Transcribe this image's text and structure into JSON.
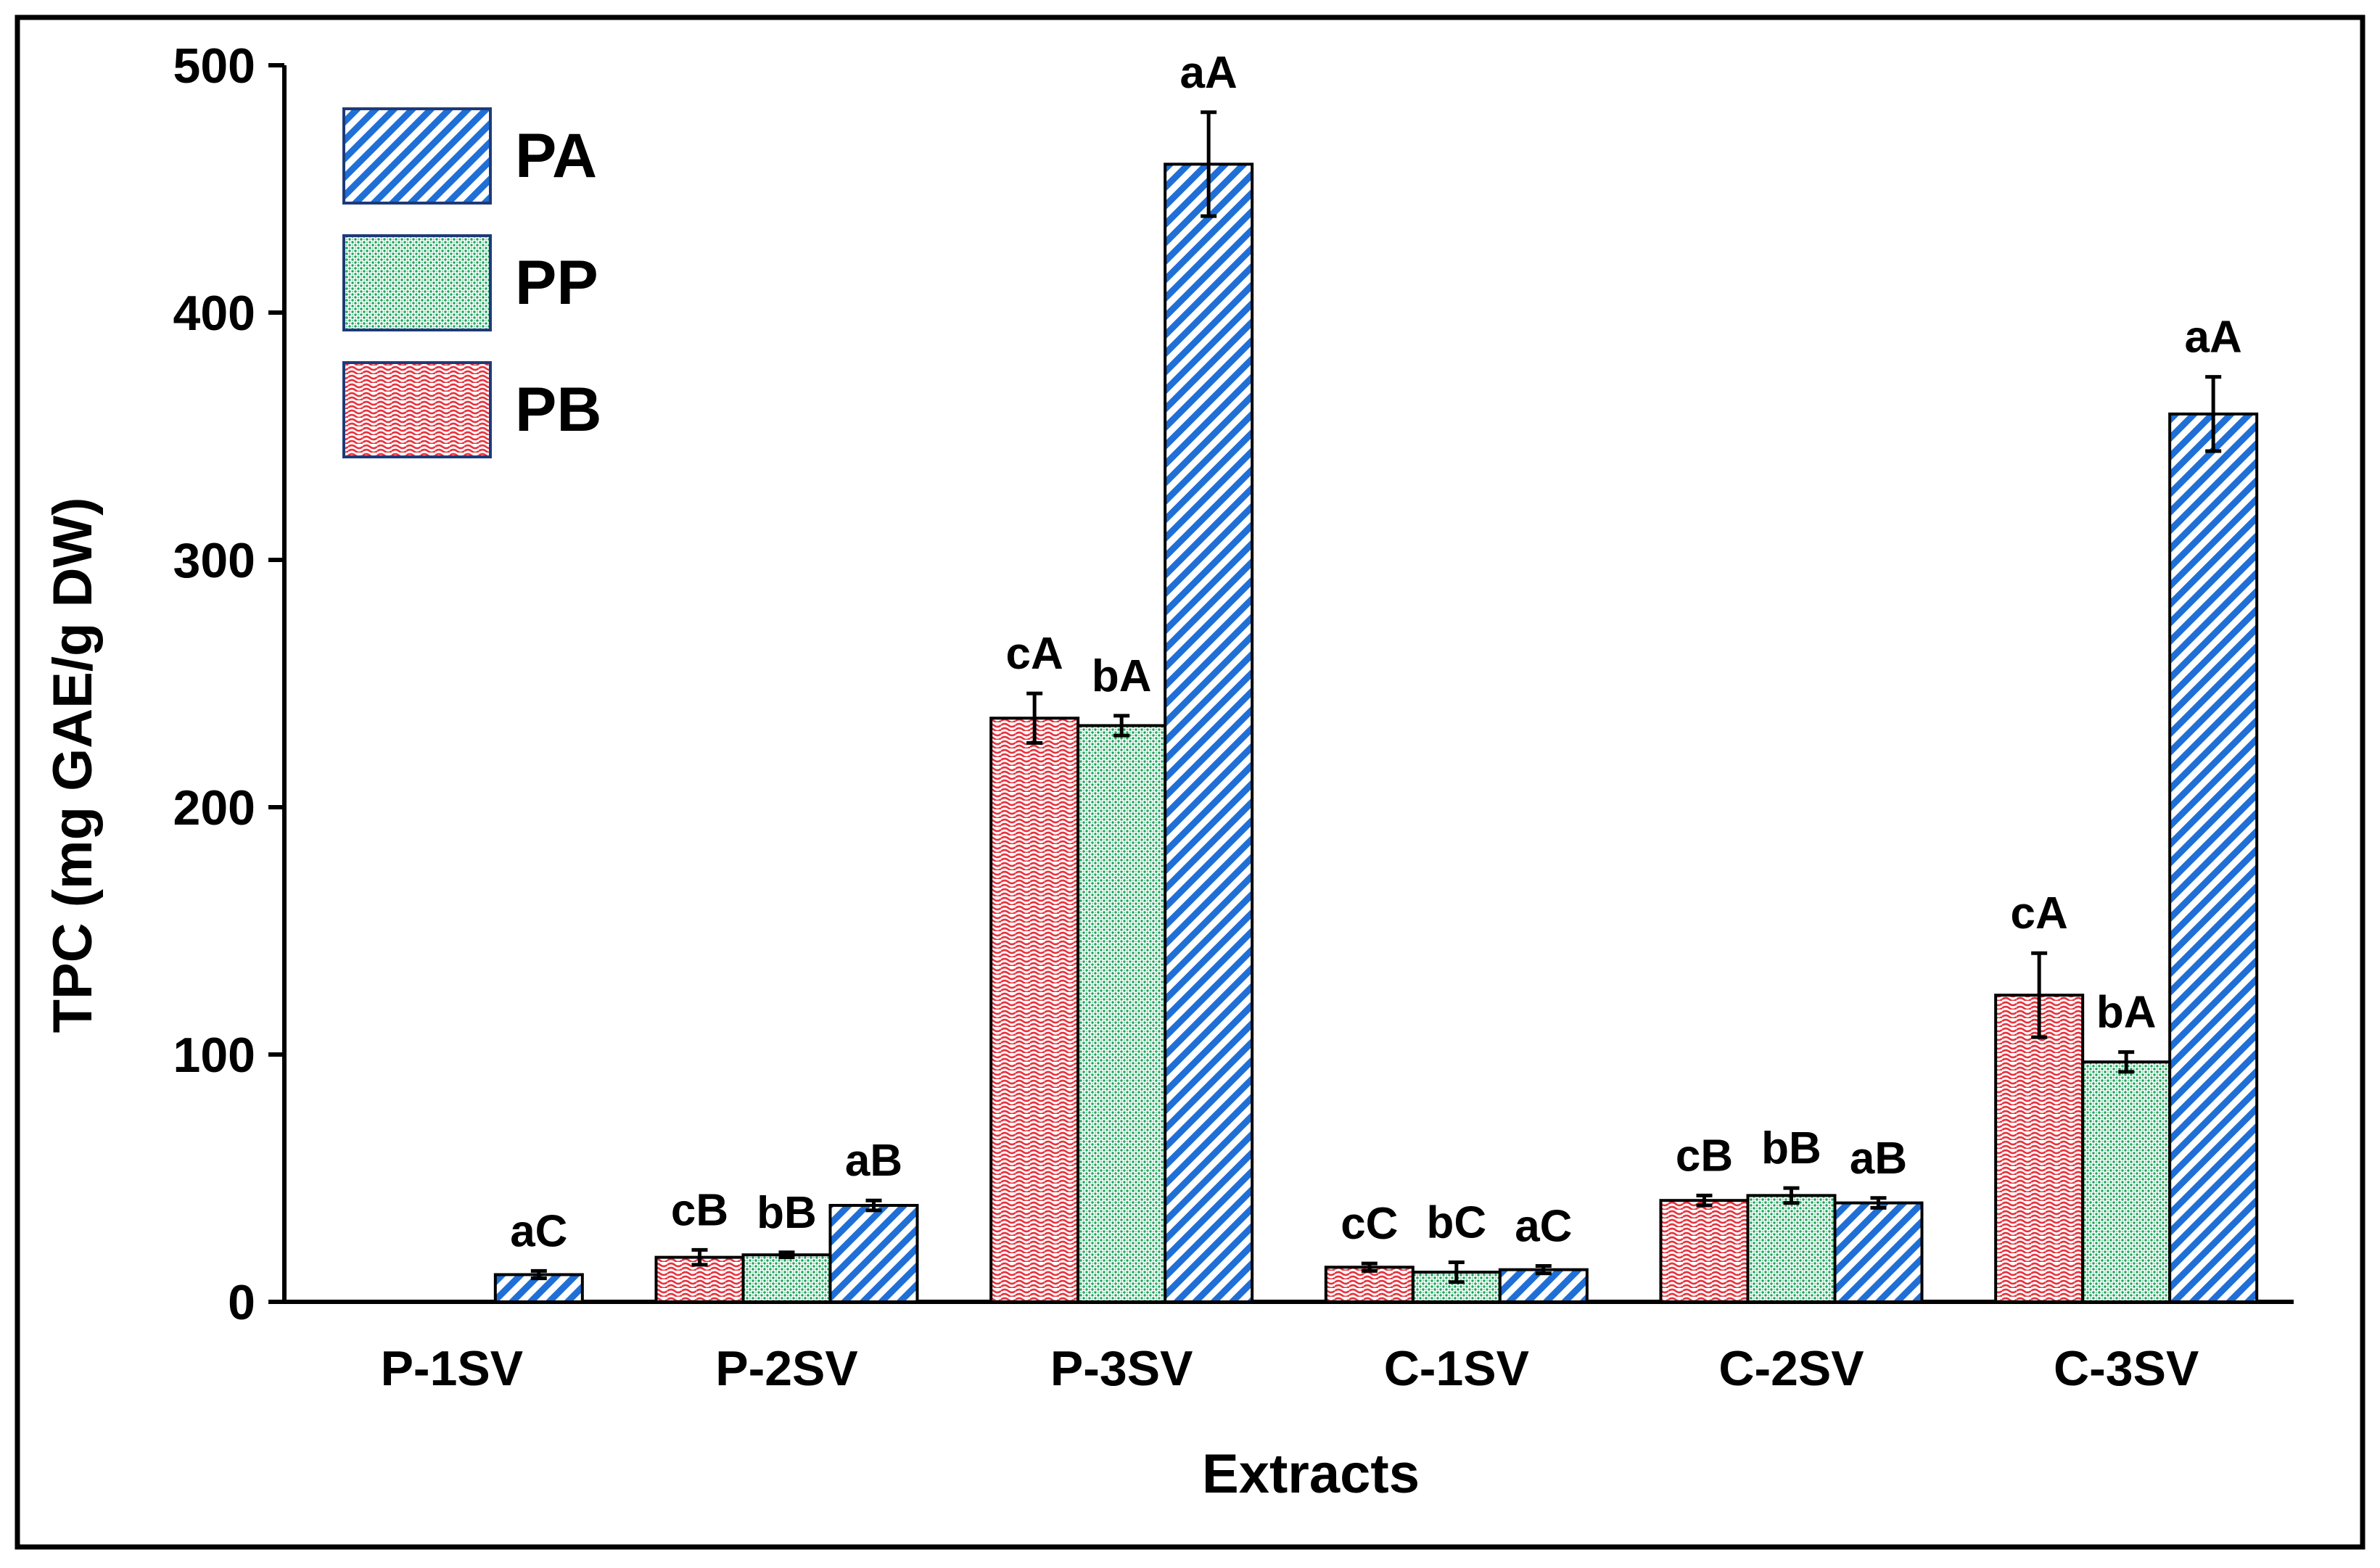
{
  "chart_data": {
    "type": "bar",
    "title": "",
    "xlabel": "Extracts",
    "ylabel": "TPC (mg GAE/g DW)",
    "ylim": [
      0,
      500
    ],
    "yticks": [
      0,
      100,
      200,
      300,
      400,
      500
    ],
    "grid": false,
    "legend_position": "top-left",
    "categories": [
      "P-1SV",
      "P-2SV",
      "P-3SV",
      "C-1SV",
      "C-2SV",
      "C-3SV"
    ],
    "series": [
      {
        "name": "PB",
        "color": "#e8323c",
        "pattern": "wavy",
        "values": [
          null,
          18,
          236,
          14,
          41,
          124
        ],
        "errors": [
          null,
          3,
          10,
          1.5,
          2,
          17
        ],
        "labels": [
          "",
          "cB",
          "cA",
          "cC",
          "cB",
          "cA"
        ]
      },
      {
        "name": "PP",
        "color": "#1aa35a",
        "pattern": "dots",
        "values": [
          null,
          19,
          233,
          12,
          43,
          97
        ],
        "errors": [
          null,
          1,
          4,
          4,
          3,
          4
        ],
        "labels": [
          "",
          "bB",
          "bA",
          "bC",
          "bB",
          "bA"
        ]
      },
      {
        "name": "PA",
        "color": "#1f6fd6",
        "pattern": "diagonal",
        "values": [
          11,
          39,
          460,
          13,
          40,
          359
        ],
        "errors": [
          1.5,
          2,
          21,
          1.5,
          2,
          15
        ],
        "labels": [
          "aC",
          "aB",
          "aA",
          "aC",
          "aB",
          "aA"
        ]
      }
    ],
    "legend_order": [
      "PA",
      "PP",
      "PB"
    ]
  }
}
